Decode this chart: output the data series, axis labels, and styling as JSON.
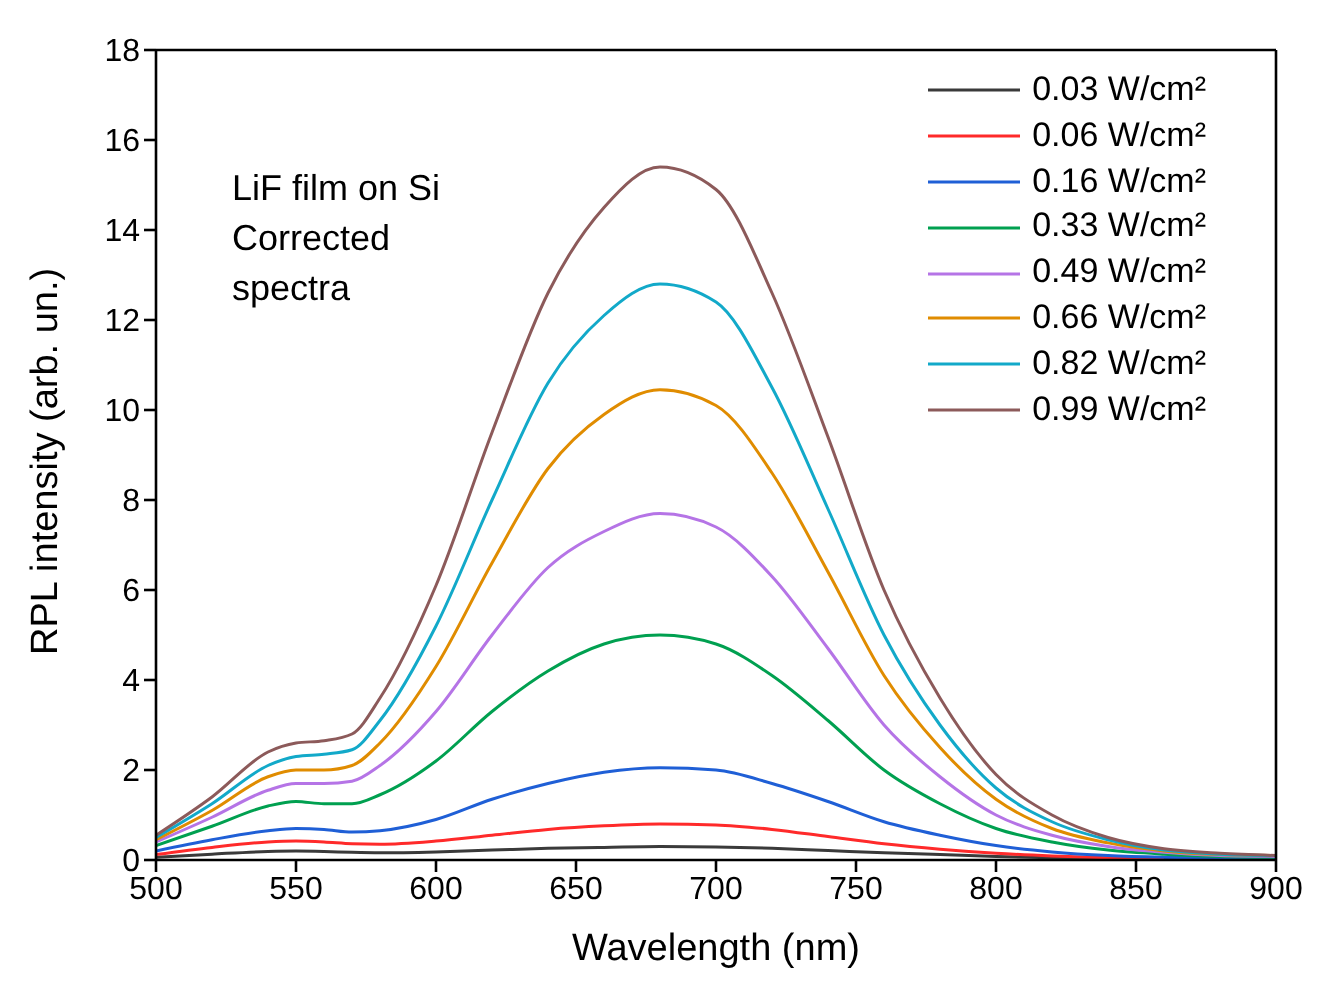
{
  "chart_data": {
    "type": "line",
    "xlabel": "Wavelength (nm)",
    "ylabel": "RPL intensity (arb. un.)",
    "annotations": [
      "LiF film on Si\nCorrected\nspectra"
    ],
    "x": [
      500,
      520,
      540,
      550,
      560,
      570,
      580,
      600,
      620,
      640,
      660,
      680,
      700,
      720,
      740,
      760,
      780,
      800,
      820,
      840,
      860,
      880,
      900
    ],
    "series": [
      {
        "name": "0.03 W/cm²",
        "color": "#3a3a3a",
        "values": [
          0.06,
          0.13,
          0.19,
          0.2,
          0.19,
          0.17,
          0.16,
          0.18,
          0.22,
          0.26,
          0.28,
          0.3,
          0.29,
          0.26,
          0.21,
          0.16,
          0.12,
          0.08,
          0.05,
          0.03,
          0.02,
          0.01,
          0.01
        ]
      },
      {
        "name": "0.06 W/cm²",
        "color": "#ff2a2a",
        "values": [
          0.12,
          0.28,
          0.4,
          0.42,
          0.4,
          0.36,
          0.35,
          0.42,
          0.55,
          0.68,
          0.76,
          0.8,
          0.78,
          0.68,
          0.52,
          0.36,
          0.24,
          0.15,
          0.09,
          0.05,
          0.03,
          null,
          null
        ]
      },
      {
        "name": "0.16 W/cm²",
        "color": "#1f5fd6",
        "values": [
          0.2,
          0.45,
          0.65,
          0.7,
          0.68,
          0.62,
          0.65,
          0.9,
          1.35,
          1.7,
          1.95,
          2.05,
          2.0,
          1.7,
          1.3,
          0.85,
          0.55,
          0.32,
          0.18,
          0.1,
          0.06,
          0.04,
          0.03
        ]
      },
      {
        "name": "0.33 W/cm²",
        "color": "#00a050",
        "values": [
          0.32,
          0.75,
          1.2,
          1.3,
          1.25,
          1.25,
          1.45,
          2.2,
          3.3,
          4.2,
          4.8,
          5.0,
          4.8,
          4.1,
          3.1,
          2.0,
          1.25,
          0.7,
          0.4,
          0.22,
          0.13,
          0.08,
          0.06
        ]
      },
      {
        "name": "0.49 W/cm²",
        "color": "#b574e6",
        "values": [
          0.4,
          0.95,
          1.55,
          1.7,
          1.7,
          1.75,
          2.1,
          3.3,
          5.0,
          6.5,
          7.3,
          7.7,
          7.4,
          6.3,
          4.7,
          3.0,
          1.85,
          1.0,
          0.55,
          0.3,
          0.17,
          0.1,
          0.08
        ]
      },
      {
        "name": "0.66 W/cm²",
        "color": "#e08c00",
        "values": [
          0.45,
          1.1,
          1.85,
          2.0,
          2.0,
          2.1,
          2.6,
          4.3,
          6.6,
          8.7,
          9.9,
          10.45,
          10.1,
          8.6,
          6.4,
          4.1,
          2.5,
          1.35,
          0.7,
          0.38,
          0.2,
          0.12,
          0.1
        ]
      },
      {
        "name": "0.82 W/cm²",
        "color": "#12a9c9",
        "values": [
          0.5,
          1.25,
          2.1,
          2.3,
          2.35,
          2.45,
          3.1,
          5.2,
          8.0,
          10.6,
          12.1,
          12.8,
          12.4,
          10.5,
          7.8,
          5.0,
          3.0,
          1.6,
          0.85,
          0.45,
          0.22,
          0.13,
          0.1
        ]
      },
      {
        "name": "0.99 W/cm²",
        "color": "#8c5a5a",
        "values": [
          0.55,
          1.4,
          2.4,
          2.6,
          2.65,
          2.8,
          3.6,
          6.1,
          9.5,
          12.6,
          14.5,
          15.4,
          14.9,
          12.6,
          9.4,
          6.0,
          3.6,
          1.9,
          1.0,
          0.5,
          0.25,
          0.15,
          0.1
        ]
      }
    ],
    "xlim": [
      500,
      900
    ],
    "xticks": [
      500,
      550,
      600,
      650,
      700,
      750,
      800,
      850,
      900
    ],
    "ylim": [
      0,
      18
    ],
    "yticks": [
      0,
      2,
      4,
      6,
      8,
      10,
      12,
      14,
      16,
      18
    ],
    "grid": false,
    "legend": "top right",
    "marker": "none",
    "line_style": "solid"
  }
}
